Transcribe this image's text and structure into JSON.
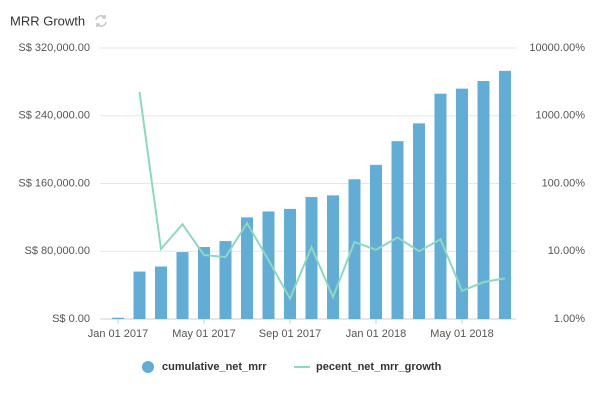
{
  "chart_data": {
    "type": "bar-line",
    "title": "MRR Growth",
    "categories": [
      "Jan 01 2017",
      null,
      null,
      null,
      "May 01 2017",
      null,
      null,
      null,
      "Sep 01 2017",
      null,
      null,
      null,
      "Jan 01 2018",
      null,
      null,
      null,
      "May 01 2018",
      null,
      null
    ],
    "series": [
      {
        "name": "cumulative_net_mrr",
        "type": "bar",
        "color": "#62add5",
        "axis": "y",
        "values": [
          1500,
          56000,
          62000,
          79000,
          85000,
          92000,
          120000,
          127000,
          130000,
          144000,
          146000,
          165000,
          182000,
          210000,
          231000,
          266000,
          272000,
          281000,
          293000
        ]
      },
      {
        "name": "pecent_net_mrr_growth",
        "type": "line",
        "color": "#8dd8c0",
        "axis": "y2",
        "values": [
          null,
          2240,
          10.8,
          25,
          8.8,
          8.2,
          26,
          7.4,
          2.0,
          11.5,
          2.1,
          13.7,
          10.5,
          16,
          10,
          15,
          2.6,
          3.5,
          4.0
        ]
      }
    ],
    "ylim": [
      0,
      320000
    ],
    "yticks": [
      {
        "value": 0,
        "label": "S$ 0.00"
      },
      {
        "value": 80000,
        "label": "S$ 80,000.00"
      },
      {
        "value": 160000,
        "label": "S$ 160,000.00"
      },
      {
        "value": 240000,
        "label": "S$ 240,000.00"
      },
      {
        "value": 320000,
        "label": "S$ 320,000.00"
      }
    ],
    "y2lim": [
      1,
      10000
    ],
    "y2ticks": [
      {
        "value": 1,
        "label": "1.00%"
      },
      {
        "value": 10,
        "label": "10.00%"
      },
      {
        "value": 100,
        "label": "100.00%"
      },
      {
        "value": 1000,
        "label": "1000.00%"
      },
      {
        "value": 10000,
        "label": "10000.00%"
      }
    ],
    "y2log": true,
    "grid": true
  }
}
